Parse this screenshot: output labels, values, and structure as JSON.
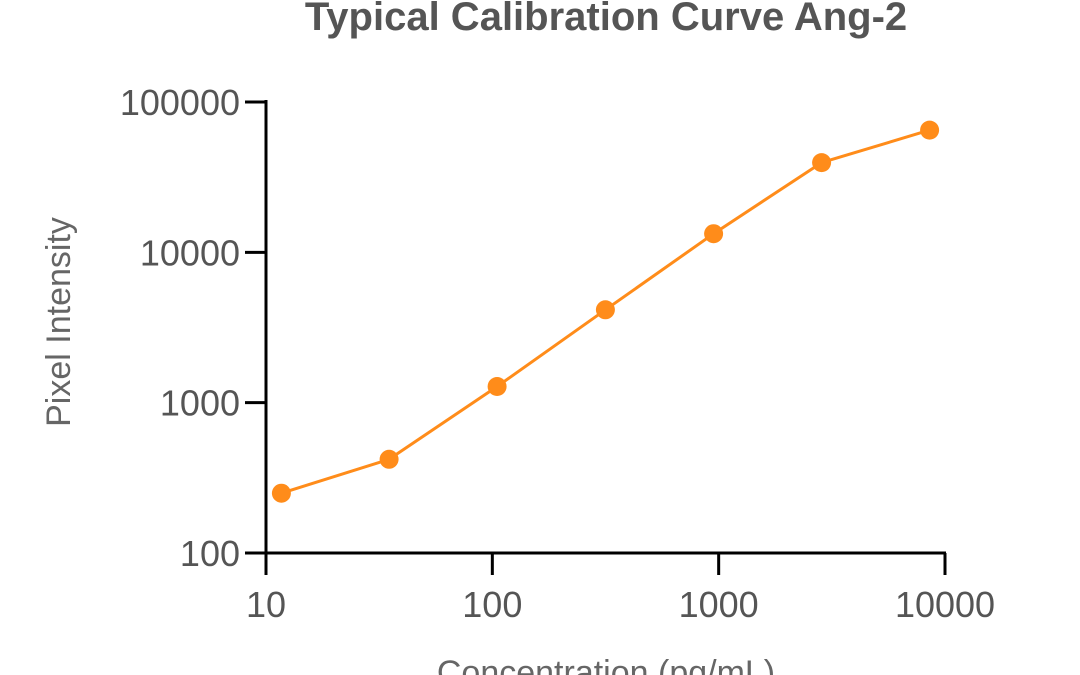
{
  "chart_data": {
    "type": "line",
    "title": "Typical Calibration Curve Ang-2",
    "xlabel": "Concentration (pg/mL)",
    "ylabel": "Pixel Intensity",
    "x_scale": "log",
    "y_scale": "log",
    "xlim": [
      10,
      10000
    ],
    "ylim": [
      100,
      100000
    ],
    "x_ticks": [
      {
        "value": 10,
        "label": "10"
      },
      {
        "value": 100,
        "label": "100"
      },
      {
        "value": 1000,
        "label": "1000"
      },
      {
        "value": 10000,
        "label": "10000"
      }
    ],
    "y_ticks": [
      {
        "value": 100,
        "label": "100"
      },
      {
        "value": 1000,
        "label": "1000"
      },
      {
        "value": 10000,
        "label": "10000"
      },
      {
        "value": 100000,
        "label": "100000"
      }
    ],
    "grid": false,
    "color": "#FF8C1A",
    "series": [
      {
        "x": [
          11.7,
          35,
          105,
          316,
          950,
          2850,
          8550
        ],
        "y": [
          250,
          420,
          1280,
          4150,
          13300,
          39500,
          65000
        ]
      }
    ]
  }
}
